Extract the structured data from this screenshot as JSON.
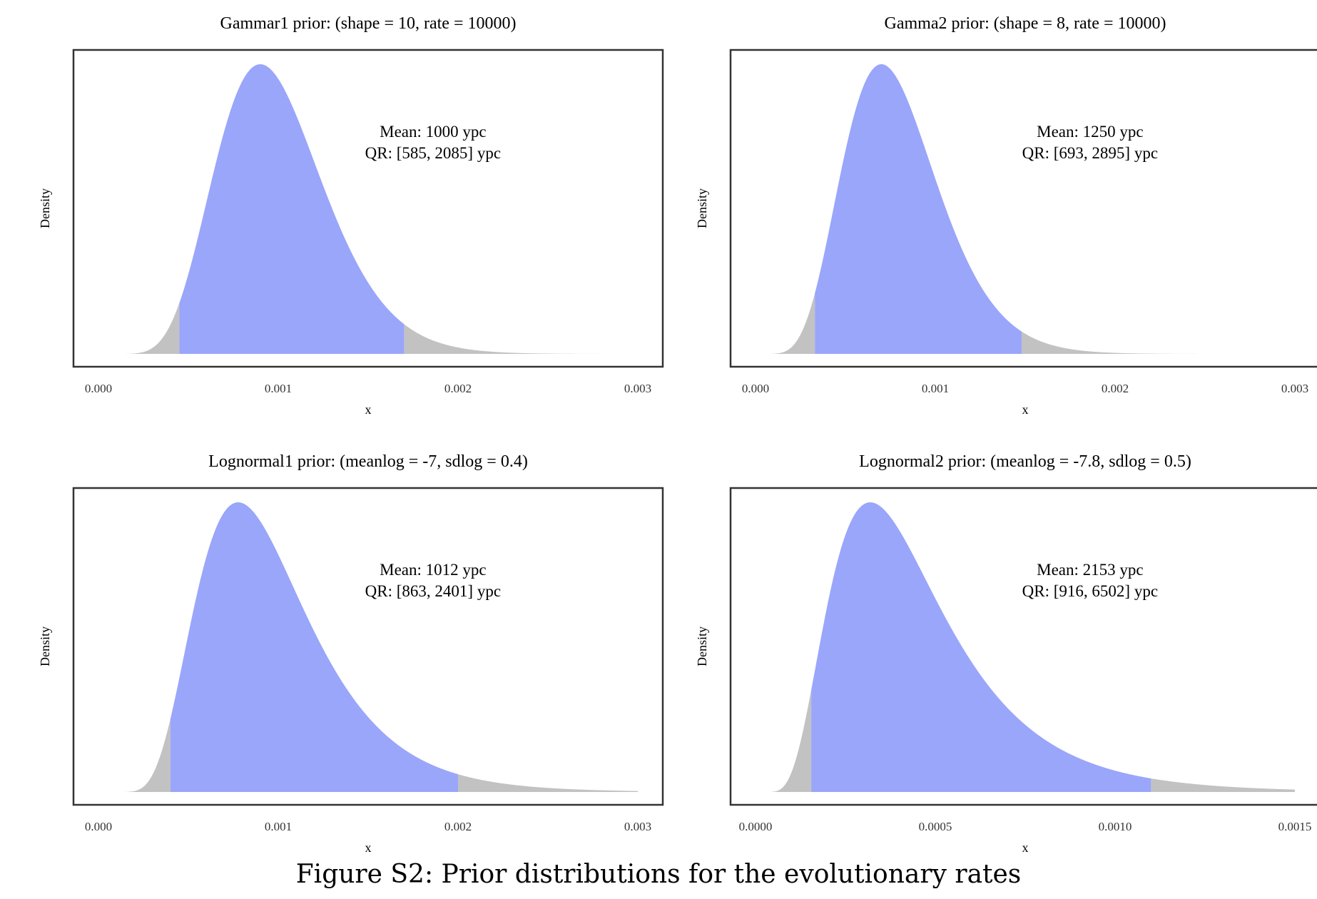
{
  "caption": "Figure S2: Prior distributions for the evolutionary rates",
  "colors": {
    "central": "#9AA6FA",
    "tail": "#C2C2C2",
    "frame": "#333333"
  },
  "chart_data": [
    {
      "type": "area",
      "title": "Gammar1 prior: (shape = 10, rate = 10000)",
      "xlabel": "x",
      "ylabel": "Density",
      "distribution": {
        "family": "gamma",
        "shape": 10,
        "rate": 10000
      },
      "xlim": [
        0,
        0.003
      ],
      "curve_domain": [
        0.00015,
        0.003
      ],
      "shaded_interval": [
        0.00045,
        0.0017
      ],
      "xticks": [
        "0.000",
        "0.001",
        "0.002",
        "0.003"
      ],
      "xtick_values": [
        0,
        0.001,
        0.002,
        0.003
      ],
      "annotations": [
        "Mean: 1000 ypc",
        "QR: [585, 2085] ypc"
      ],
      "grid": false
    },
    {
      "type": "area",
      "title": "Gamma2 prior: (shape = 8, rate = 10000)",
      "xlabel": "x",
      "ylabel": "Density",
      "distribution": {
        "family": "gamma",
        "shape": 8,
        "rate": 10000
      },
      "xlim": [
        0,
        0.003
      ],
      "curve_domain": [
        8e-05,
        0.003
      ],
      "shaded_interval": [
        0.00033,
        0.00148
      ],
      "xticks": [
        "0.000",
        "0.001",
        "0.002",
        "0.003"
      ],
      "xtick_values": [
        0,
        0.001,
        0.002,
        0.003
      ],
      "annotations": [
        "Mean: 1250 ypc",
        "QR: [693, 2895] ypc"
      ],
      "grid": false
    },
    {
      "type": "area",
      "title": "Lognormal1 prior: (meanlog = -7, sdlog = 0.4)",
      "xlabel": "x",
      "ylabel": "Density",
      "distribution": {
        "family": "lognormal",
        "meanlog": -7,
        "sdlog": 0.4
      },
      "xlim": [
        0,
        0.003
      ],
      "curve_domain": [
        0.00015,
        0.003
      ],
      "shaded_interval": [
        0.0004,
        0.002
      ],
      "xticks": [
        "0.000",
        "0.001",
        "0.002",
        "0.003"
      ],
      "xtick_values": [
        0,
        0.001,
        0.002,
        0.003
      ],
      "annotations": [
        "Mean: 1012 ypc",
        "QR: [863, 2401] ypc"
      ],
      "grid": false
    },
    {
      "type": "area",
      "title": "Lognormal2 prior: (meanlog = -7.8, sdlog = 0.5)",
      "xlabel": "x",
      "ylabel": "Density",
      "distribution": {
        "family": "lognormal",
        "meanlog": -7.8,
        "sdlog": 0.5
      },
      "xlim": [
        0,
        0.0015
      ],
      "curve_domain": [
        4e-05,
        0.0015
      ],
      "shaded_interval": [
        0.000155,
        0.0011
      ],
      "xticks": [
        "0.0000",
        "0.0005",
        "0.0010",
        "0.0015"
      ],
      "xtick_values": [
        0,
        0.0005,
        0.001,
        0.0015
      ],
      "annotations": [
        "Mean: 2153 ypc",
        "QR: [916, 6502] ypc"
      ],
      "grid": false
    }
  ]
}
